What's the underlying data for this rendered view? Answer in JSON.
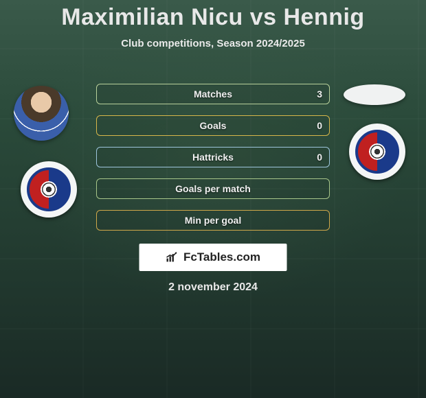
{
  "title": "Maximilian Nicu vs Hennig",
  "subtitle": "Club competitions, Season 2024/2025",
  "date": "2 november 2024",
  "brand": "FcTables.com",
  "colors": {
    "title": "#e8e8e8",
    "subtitle": "#eaeaea",
    "stat_text": "#f0f0f0",
    "brand_bg": "#ffffff",
    "brand_text": "#222222"
  },
  "stats": [
    {
      "label": "Matches",
      "value": "3",
      "border_color": "#b9d19b"
    },
    {
      "label": "Goals",
      "value": "0",
      "border_color": "#d8b74a"
    },
    {
      "label": "Hattricks",
      "value": "0",
      "border_color": "#9ec6dd"
    },
    {
      "label": "Goals per match",
      "value": "",
      "border_color": "#a8c68a"
    },
    {
      "label": "Min per goal",
      "value": "",
      "border_color": "#d0a84a"
    }
  ]
}
